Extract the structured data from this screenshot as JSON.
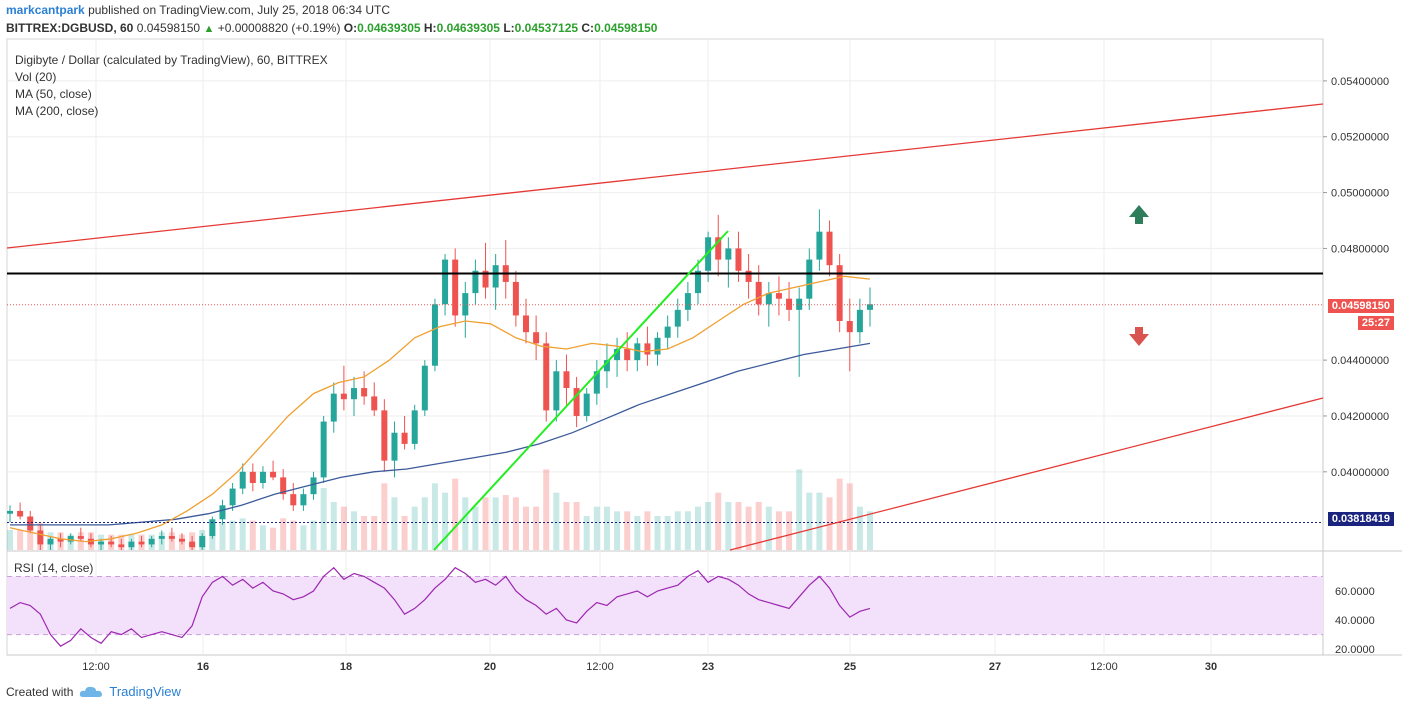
{
  "header": {
    "user": "markcantpark",
    "published": "published on TradingView.com, July 25, 2018 06:34 UTC",
    "symbol": "BITTREX:DGBUSD, 60",
    "last": "0.04598150",
    "change": "+0.00008820 (+0.19%)",
    "o_label": "O:",
    "o": "0.04639305",
    "h_label": "H:",
    "h": "0.04639305",
    "l_label": "L:",
    "l": "0.04537125",
    "c_label": "C:",
    "c": "0.04598150"
  },
  "legend": {
    "title": "Digibyte / Dollar (calculated by TradingView), 60, BITTREX",
    "vol": "Vol (20)",
    "ma50": "MA (50, close)",
    "ma200": "MA (200, close)"
  },
  "rsi_label": "RSI (14, close)",
  "price_tag": "0.04598150",
  "countdown_tag": "25:27",
  "support_tag": "0.03818419",
  "footer": {
    "created": "Created with",
    "brand": "TradingView"
  },
  "colors": {
    "up": "#26a69a",
    "down": "#ef5350",
    "ma50": "#f0a030",
    "ma200": "#3c5a9a",
    "channel": "#e53935",
    "trend": "#22ee22",
    "resistance": "#000000",
    "rsi": "#9c27b0",
    "rsi_band": "#f3e0fb",
    "arrow_up": "#2e7d5b",
    "arrow_down": "#d9534f"
  },
  "chart_data": [
    {
      "type": "candlestick",
      "y_ticks": [
        "0.05400000",
        "0.05200000",
        "0.05000000",
        "0.04800000",
        "0.04400000",
        "0.04200000",
        "0.04000000"
      ],
      "ylim": [
        0.0372,
        0.0555
      ],
      "x_ticks": [
        "12:00",
        "16",
        "18",
        "20",
        "12:00",
        "23",
        "25",
        "27",
        "12:00",
        "30"
      ],
      "resistance": 0.0471,
      "support": 0.03818419,
      "last_price": 0.0459815,
      "candles": [
        [
          0.0385,
          0.0388,
          0.0382,
          0.0386
        ],
        [
          0.0386,
          0.0389,
          0.0383,
          0.0384
        ],
        [
          0.0384,
          0.0386,
          0.0378,
          0.0379
        ],
        [
          0.0379,
          0.0381,
          0.0372,
          0.0374
        ],
        [
          0.0374,
          0.0377,
          0.0372,
          0.0376
        ],
        [
          0.0376,
          0.0378,
          0.0373,
          0.0375
        ],
        [
          0.0375,
          0.0378,
          0.0374,
          0.0377
        ],
        [
          0.0377,
          0.038,
          0.0375,
          0.0376
        ],
        [
          0.0376,
          0.0378,
          0.0373,
          0.0374
        ],
        [
          0.0374,
          0.0376,
          0.0372,
          0.0375
        ],
        [
          0.0375,
          0.0377,
          0.0373,
          0.0374
        ],
        [
          0.0374,
          0.0376,
          0.0372,
          0.0373
        ],
        [
          0.0373,
          0.0376,
          0.0372,
          0.0375
        ],
        [
          0.0375,
          0.0377,
          0.0373,
          0.0374
        ],
        [
          0.0374,
          0.0377,
          0.0373,
          0.0376
        ],
        [
          0.0376,
          0.0379,
          0.0374,
          0.0377
        ],
        [
          0.0377,
          0.038,
          0.0375,
          0.0376
        ],
        [
          0.0376,
          0.0378,
          0.0374,
          0.0375
        ],
        [
          0.0375,
          0.0377,
          0.0372,
          0.0373
        ],
        [
          0.0373,
          0.0378,
          0.0372,
          0.0377
        ],
        [
          0.0377,
          0.0384,
          0.0376,
          0.0383
        ],
        [
          0.0383,
          0.039,
          0.0381,
          0.0388
        ],
        [
          0.0388,
          0.0396,
          0.0386,
          0.0394
        ],
        [
          0.0394,
          0.0403,
          0.0392,
          0.04
        ],
        [
          0.04,
          0.0403,
          0.0393,
          0.0396
        ],
        [
          0.0396,
          0.0402,
          0.0394,
          0.04
        ],
        [
          0.04,
          0.0404,
          0.0397,
          0.0398
        ],
        [
          0.0398,
          0.0401,
          0.039,
          0.0392
        ],
        [
          0.0392,
          0.0396,
          0.0386,
          0.0388
        ],
        [
          0.0388,
          0.0394,
          0.0386,
          0.0392
        ],
        [
          0.0392,
          0.04,
          0.039,
          0.0398
        ],
        [
          0.0398,
          0.042,
          0.0396,
          0.0418
        ],
        [
          0.0418,
          0.0432,
          0.0414,
          0.0428
        ],
        [
          0.0428,
          0.0438,
          0.0422,
          0.0426
        ],
        [
          0.0426,
          0.0434,
          0.042,
          0.043
        ],
        [
          0.043,
          0.0436,
          0.0424,
          0.0427
        ],
        [
          0.0427,
          0.0432,
          0.042,
          0.0422
        ],
        [
          0.0422,
          0.0426,
          0.04,
          0.0404
        ],
        [
          0.0404,
          0.0418,
          0.0398,
          0.0414
        ],
        [
          0.0414,
          0.042,
          0.0408,
          0.041
        ],
        [
          0.041,
          0.0424,
          0.0408,
          0.0422
        ],
        [
          0.0422,
          0.044,
          0.042,
          0.0438
        ],
        [
          0.0438,
          0.0462,
          0.0436,
          0.046
        ],
        [
          0.046,
          0.0478,
          0.0456,
          0.0476
        ],
        [
          0.0476,
          0.048,
          0.0452,
          0.0456
        ],
        [
          0.0456,
          0.0468,
          0.0448,
          0.0464
        ],
        [
          0.0464,
          0.0476,
          0.046,
          0.0472
        ],
        [
          0.0472,
          0.0482,
          0.0462,
          0.0466
        ],
        [
          0.0466,
          0.0478,
          0.0458,
          0.0474
        ],
        [
          0.0474,
          0.0483,
          0.0462,
          0.0468
        ],
        [
          0.0468,
          0.0472,
          0.0452,
          0.0456
        ],
        [
          0.0456,
          0.0462,
          0.0446,
          0.045
        ],
        [
          0.045,
          0.0456,
          0.044,
          0.0446
        ],
        [
          0.0446,
          0.045,
          0.0418,
          0.0422
        ],
        [
          0.0422,
          0.044,
          0.0418,
          0.0436
        ],
        [
          0.0436,
          0.0442,
          0.0424,
          0.043
        ],
        [
          0.043,
          0.0434,
          0.0416,
          0.042
        ],
        [
          0.042,
          0.043,
          0.0418,
          0.0428
        ],
        [
          0.0428,
          0.044,
          0.0424,
          0.0436
        ],
        [
          0.0436,
          0.0446,
          0.043,
          0.044
        ],
        [
          0.044,
          0.0448,
          0.0434,
          0.0444
        ],
        [
          0.0444,
          0.045,
          0.0436,
          0.044
        ],
        [
          0.044,
          0.0448,
          0.0436,
          0.0446
        ],
        [
          0.0446,
          0.0452,
          0.0438,
          0.0442
        ],
        [
          0.0442,
          0.045,
          0.0438,
          0.0448
        ],
        [
          0.0448,
          0.0456,
          0.0444,
          0.0452
        ],
        [
          0.0452,
          0.0462,
          0.0448,
          0.0458
        ],
        [
          0.0458,
          0.0468,
          0.0454,
          0.0464
        ],
        [
          0.0464,
          0.0476,
          0.046,
          0.0472
        ],
        [
          0.0472,
          0.0486,
          0.0468,
          0.0484
        ],
        [
          0.0484,
          0.0492,
          0.047,
          0.0476
        ],
        [
          0.0476,
          0.0484,
          0.0466,
          0.048
        ],
        [
          0.048,
          0.0486,
          0.0468,
          0.0472
        ],
        [
          0.0472,
          0.0478,
          0.0462,
          0.0468
        ],
        [
          0.0468,
          0.0474,
          0.0456,
          0.046
        ],
        [
          0.046,
          0.0468,
          0.0452,
          0.0464
        ],
        [
          0.0464,
          0.047,
          0.0456,
          0.0462
        ],
        [
          0.0462,
          0.0468,
          0.0454,
          0.0458
        ],
        [
          0.0458,
          0.0466,
          0.0434,
          0.0462
        ],
        [
          0.0462,
          0.048,
          0.0458,
          0.0476
        ],
        [
          0.0476,
          0.0494,
          0.0472,
          0.0486
        ],
        [
          0.0486,
          0.049,
          0.047,
          0.0474
        ],
        [
          0.0474,
          0.0478,
          0.045,
          0.0454
        ],
        [
          0.0454,
          0.0462,
          0.0436,
          0.045
        ],
        [
          0.045,
          0.0462,
          0.0446,
          0.0458
        ],
        [
          0.0458,
          0.0466,
          0.0452,
          0.046
        ]
      ],
      "ma50": [
        0.038,
        0.0378,
        0.0376,
        0.0375,
        0.0376,
        0.0378,
        0.0381,
        0.0386,
        0.0392,
        0.04,
        0.041,
        0.042,
        0.0428,
        0.0432,
        0.0434,
        0.044,
        0.0448,
        0.0452,
        0.0454,
        0.0453,
        0.0448,
        0.0445,
        0.0444,
        0.0446,
        0.0445,
        0.0443,
        0.0444,
        0.0448,
        0.0454,
        0.046,
        0.0464,
        0.0466,
        0.0468,
        0.047,
        0.0469
      ],
      "ma200": [
        0.0381,
        0.0381,
        0.0381,
        0.0381,
        0.0382,
        0.0383,
        0.0385,
        0.0388,
        0.0392,
        0.0395,
        0.0398,
        0.04,
        0.0401,
        0.0403,
        0.0405,
        0.0407,
        0.041,
        0.0414,
        0.0419,
        0.0424,
        0.0428,
        0.0432,
        0.0436,
        0.0439,
        0.0442,
        0.0444,
        0.0446
      ]
    },
    {
      "type": "line",
      "name": "RSI (14, close)",
      "y_ticks": [
        "60.0000",
        "40.0000",
        "20.0000"
      ],
      "ylim": [
        18,
        82
      ],
      "band": [
        30,
        70
      ],
      "values": [
        48,
        52,
        50,
        44,
        30,
        22,
        26,
        34,
        28,
        24,
        32,
        30,
        34,
        28,
        30,
        32,
        30,
        28,
        36,
        56,
        66,
        70,
        64,
        68,
        62,
        66,
        60,
        58,
        54,
        56,
        60,
        70,
        76,
        68,
        72,
        70,
        66,
        62,
        54,
        44,
        48,
        54,
        62,
        68,
        76,
        72,
        66,
        68,
        64,
        70,
        60,
        54,
        50,
        44,
        48,
        40,
        38,
        46,
        52,
        50,
        56,
        58,
        60,
        56,
        60,
        62,
        64,
        70,
        74,
        66,
        70,
        68,
        64,
        58,
        54,
        52,
        50,
        48,
        56,
        64,
        70,
        62,
        50,
        42,
        46,
        48
      ]
    }
  ]
}
